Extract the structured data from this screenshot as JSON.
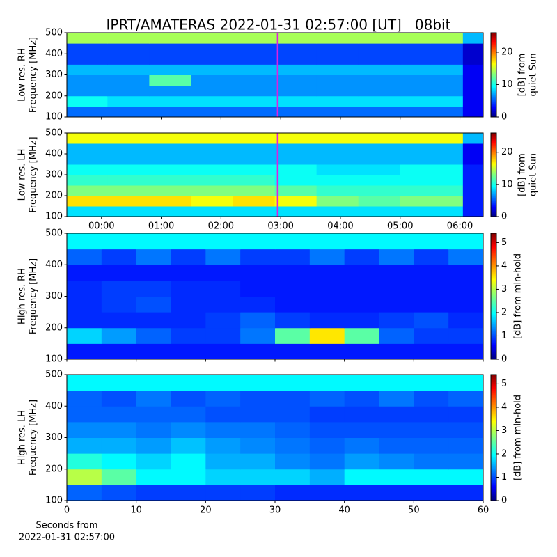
{
  "title": "IPRT/AMATERAS 2022-01-31 02:57:00 [UT]   08bit",
  "chart_data": [
    {
      "type": "heatmap",
      "colormap": "jet",
      "ylabel": [
        "Low res. RH",
        "Frequency [MHz]"
      ],
      "xlim": [
        -0.58,
        6.39
      ],
      "xticks": [
        0,
        1,
        2,
        3,
        4,
        5,
        6
      ],
      "xticklabels": false,
      "ylim": [
        100,
        500
      ],
      "yticks": [
        100,
        200,
        300,
        400,
        500
      ],
      "xbins": [
        -0.58,
        0.1,
        0.8,
        1.5,
        2.2,
        2.9,
        3.6,
        4.3,
        5.0,
        5.5,
        6.05,
        6.39
      ],
      "ybins": [
        100,
        150,
        200,
        250,
        300,
        350,
        400,
        450,
        500
      ],
      "z": [
        [
          6,
          6,
          6,
          6,
          6,
          6,
          6,
          6,
          6,
          6,
          3
        ],
        [
          10,
          9,
          9,
          9,
          9,
          9,
          9,
          9,
          9,
          9,
          3
        ],
        [
          7,
          7,
          7,
          7,
          7,
          7,
          7,
          7,
          7,
          7,
          3
        ],
        [
          7,
          7,
          12,
          7,
          7,
          7,
          7,
          7,
          7,
          7,
          3
        ],
        [
          8,
          8,
          8,
          8,
          8,
          8,
          8,
          8,
          8,
          8,
          3
        ],
        [
          5,
          5,
          5,
          5,
          5,
          5,
          5,
          5,
          5,
          5,
          2
        ],
        [
          5,
          5,
          5,
          5,
          5,
          5,
          5,
          5,
          5,
          5,
          2
        ],
        [
          14,
          14,
          14,
          14,
          14,
          14,
          14,
          14,
          14,
          14,
          8
        ]
      ],
      "vline": {
        "value": 2.95,
        "color": "#e020e0"
      },
      "clim": [
        0,
        26
      ],
      "cticks": [
        0,
        10,
        20
      ],
      "clabel": [
        "[dB] from",
        "quiet Sun"
      ]
    },
    {
      "type": "heatmap",
      "colormap": "jet",
      "ylabel": [
        "Low res. LH",
        "Frequency [MHz]"
      ],
      "xlim": [
        -0.58,
        6.39
      ],
      "xticks": [
        {
          "value": 0,
          "label": "00:00"
        },
        {
          "value": 1,
          "label": "01:00"
        },
        {
          "value": 2,
          "label": "02:00"
        },
        {
          "value": 3,
          "label": "03:00"
        },
        {
          "value": 4,
          "label": "04:00"
        },
        {
          "value": 5,
          "label": "05:00"
        },
        {
          "value": 6,
          "label": "06:00"
        }
      ],
      "ylim": [
        100,
        500
      ],
      "yticks": [
        100,
        200,
        300,
        400,
        500
      ],
      "xbins": [
        -0.58,
        0.1,
        0.8,
        1.5,
        2.2,
        2.9,
        3.6,
        4.3,
        5.0,
        5.5,
        6.05,
        6.39
      ],
      "ybins": [
        100,
        150,
        200,
        250,
        300,
        350,
        400,
        450,
        500
      ],
      "z": [
        [
          9,
          9,
          9,
          9,
          9,
          9,
          9,
          9,
          9,
          9,
          4
        ],
        [
          17,
          17,
          17,
          16,
          17,
          16,
          13,
          12,
          13,
          13,
          4
        ],
        [
          13,
          13,
          13,
          13,
          13,
          12,
          11,
          11,
          11,
          11,
          4
        ],
        [
          11,
          11,
          11,
          11,
          11,
          10,
          10,
          10,
          10,
          10,
          4
        ],
        [
          10,
          10,
          10,
          10,
          10,
          10,
          9,
          9,
          10,
          10,
          4
        ],
        [
          8,
          8,
          8,
          8,
          8,
          8,
          8,
          8,
          8,
          8,
          3
        ],
        [
          8,
          8,
          8,
          8,
          8,
          8,
          8,
          8,
          8,
          8,
          3
        ],
        [
          16,
          16,
          16,
          16,
          16,
          16,
          16,
          16,
          16,
          16,
          8
        ]
      ],
      "vline": {
        "value": 2.95,
        "color": "#e020e0"
      },
      "clim": [
        0,
        26
      ],
      "cticks": [
        0,
        10,
        20
      ],
      "clabel": [
        "[dB] from",
        "quiet Sun"
      ]
    },
    {
      "type": "heatmap",
      "colormap": "jet",
      "ylabel": [
        "High res. RH",
        "Frequency [MHz]"
      ],
      "xlim": [
        0,
        60
      ],
      "xticks": [
        0,
        10,
        20,
        30,
        40,
        50,
        60
      ],
      "xticklabels": false,
      "ylim": [
        100,
        500
      ],
      "yticks": [
        100,
        200,
        300,
        400,
        500
      ],
      "xbins": [
        0,
        5,
        10,
        15,
        20,
        25,
        30,
        35,
        40,
        45,
        50,
        55,
        60
      ],
      "ybins": [
        100,
        150,
        200,
        250,
        300,
        350,
        400,
        450,
        500
      ],
      "z": [
        [
          0.8,
          0.8,
          0.8,
          0.8,
          0.8,
          0.8,
          0.8,
          0.8,
          0.8,
          0.8,
          0.8,
          0.8
        ],
        [
          1.8,
          1.5,
          1.2,
          1.0,
          1.0,
          1.3,
          2.5,
          3.5,
          2.5,
          1.2,
          1.0,
          1.0
        ],
        [
          0.9,
          0.9,
          0.9,
          0.9,
          1.0,
          1.2,
          1.0,
          0.9,
          0.9,
          1.0,
          1.1,
          0.9
        ],
        [
          0.9,
          1.0,
          1.1,
          0.9,
          0.9,
          0.9,
          0.8,
          0.8,
          0.8,
          0.8,
          0.8,
          0.8
        ],
        [
          0.9,
          1.0,
          1.0,
          0.9,
          0.9,
          0.8,
          0.8,
          0.8,
          0.8,
          0.8,
          0.8,
          0.8
        ],
        [
          0.8,
          0.8,
          0.8,
          0.8,
          0.8,
          0.8,
          0.8,
          0.8,
          0.8,
          0.8,
          0.8,
          0.8
        ],
        [
          1.2,
          1.0,
          1.3,
          1.0,
          1.3,
          1.0,
          1.0,
          1.3,
          1.0,
          1.3,
          1.0,
          1.3
        ],
        [
          2.0,
          2.0,
          2.0,
          2.0,
          2.0,
          2.0,
          2.0,
          2.0,
          2.0,
          2.0,
          2.0,
          2.0
        ]
      ],
      "clim": [
        0,
        5.4
      ],
      "cticks": [
        0,
        1,
        2,
        3,
        4,
        5
      ],
      "clabel": [
        "[dB] from min-hold"
      ]
    },
    {
      "type": "heatmap",
      "colormap": "jet",
      "ylabel": [
        "High res. LH",
        "Frequency [MHz]"
      ],
      "xlim": [
        0,
        60
      ],
      "xticks": [
        0,
        10,
        20,
        30,
        40,
        50,
        60
      ],
      "xlabel": [
        "Seconds from",
        "2022-01-31 02:57:00"
      ],
      "ylim": [
        100,
        500
      ],
      "yticks": [
        100,
        200,
        300,
        400,
        500
      ],
      "xbins": [
        0,
        5,
        10,
        15,
        20,
        25,
        30,
        35,
        40,
        45,
        50,
        55,
        60
      ],
      "ybins": [
        100,
        150,
        200,
        250,
        300,
        350,
        400,
        450,
        500
      ],
      "z": [
        [
          1.2,
          1.1,
          1.0,
          1.0,
          1.0,
          1.0,
          0.9,
          0.9,
          0.9,
          0.9,
          0.9,
          0.9
        ],
        [
          3.0,
          2.5,
          2.0,
          2.0,
          1.8,
          1.8,
          1.8,
          1.6,
          2.0,
          2.0,
          2.0,
          2.0
        ],
        [
          2.2,
          2.0,
          1.8,
          2.0,
          1.6,
          1.6,
          1.4,
          1.3,
          1.5,
          1.4,
          1.3,
          1.3
        ],
        [
          1.6,
          1.6,
          1.5,
          1.7,
          1.5,
          1.4,
          1.3,
          1.2,
          1.3,
          1.2,
          1.2,
          1.2
        ],
        [
          1.4,
          1.4,
          1.3,
          1.4,
          1.3,
          1.3,
          1.2,
          1.1,
          1.1,
          1.1,
          1.1,
          1.1
        ],
        [
          1.2,
          1.2,
          1.2,
          1.2,
          1.1,
          1.1,
          1.1,
          1.0,
          1.0,
          1.0,
          1.0,
          1.0
        ],
        [
          1.2,
          1.1,
          1.3,
          1.1,
          1.2,
          1.1,
          1.1,
          1.2,
          1.1,
          1.3,
          1.1,
          1.2
        ],
        [
          2.0,
          2.0,
          2.0,
          2.0,
          2.0,
          2.0,
          2.0,
          2.0,
          2.0,
          2.0,
          2.0,
          2.0
        ]
      ],
      "clim": [
        0,
        5.4
      ],
      "cticks": [
        0,
        1,
        2,
        3,
        4,
        5
      ],
      "clabel": [
        "[dB] from min-hold"
      ]
    }
  ]
}
